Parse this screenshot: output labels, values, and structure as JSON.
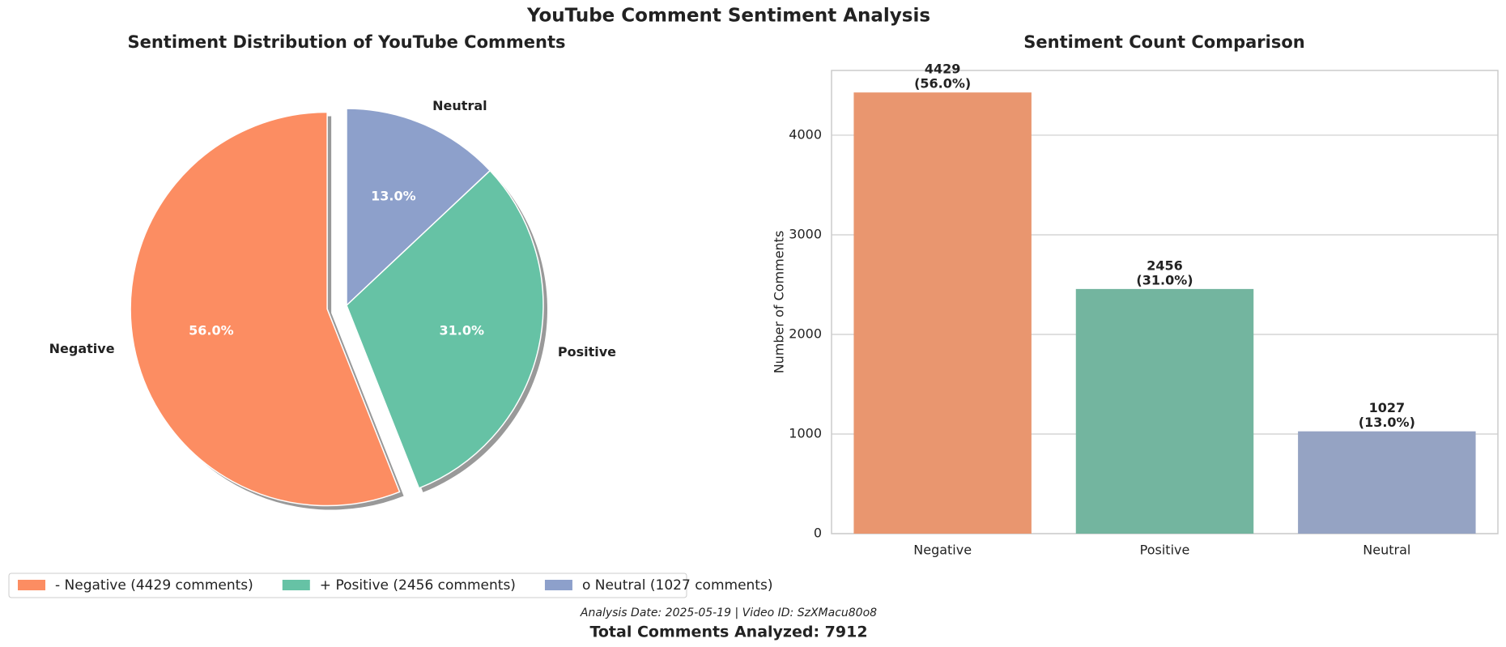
{
  "title": "YouTube Comment Sentiment Analysis",
  "chart_data": [
    {
      "type": "pie",
      "title": "Sentiment Distribution of YouTube Comments",
      "categories": [
        "Negative",
        "Positive",
        "Neutral"
      ],
      "values": [
        56.0,
        31.0,
        13.0
      ],
      "value_labels": [
        "56.0%",
        "31.0%",
        "13.0%"
      ],
      "colors": [
        "#fc8d62",
        "#66c2a5",
        "#8da0cb"
      ],
      "explode": [
        0.1,
        0,
        0
      ],
      "startangle": 90,
      "shadow": true,
      "legend_labels": [
        "- Negative (4429 comments)",
        "+ Positive (2456 comments)",
        "o Neutral (1027 comments)"
      ]
    },
    {
      "type": "bar",
      "title": "Sentiment Count Comparison",
      "categories": [
        "Negative",
        "Positive",
        "Neutral"
      ],
      "values": [
        4429,
        2456,
        1027
      ],
      "value_labels": [
        [
          "4429",
          "(56.0%)"
        ],
        [
          "2456",
          "(31.0%)"
        ],
        [
          "1027",
          "(13.0%)"
        ]
      ],
      "colors": [
        "#e9966f",
        "#73b59f",
        "#95a3c3"
      ],
      "ylabel": "Number of Comments",
      "ylim": [
        0,
        4650
      ],
      "yticks": [
        0,
        1000,
        2000,
        3000,
        4000
      ],
      "grid": true
    }
  ],
  "footer": {
    "note": "Analysis Date: 2025-05-19 | Video ID: SzXMacu80o8",
    "total": "Total Comments Analyzed: 7912"
  }
}
